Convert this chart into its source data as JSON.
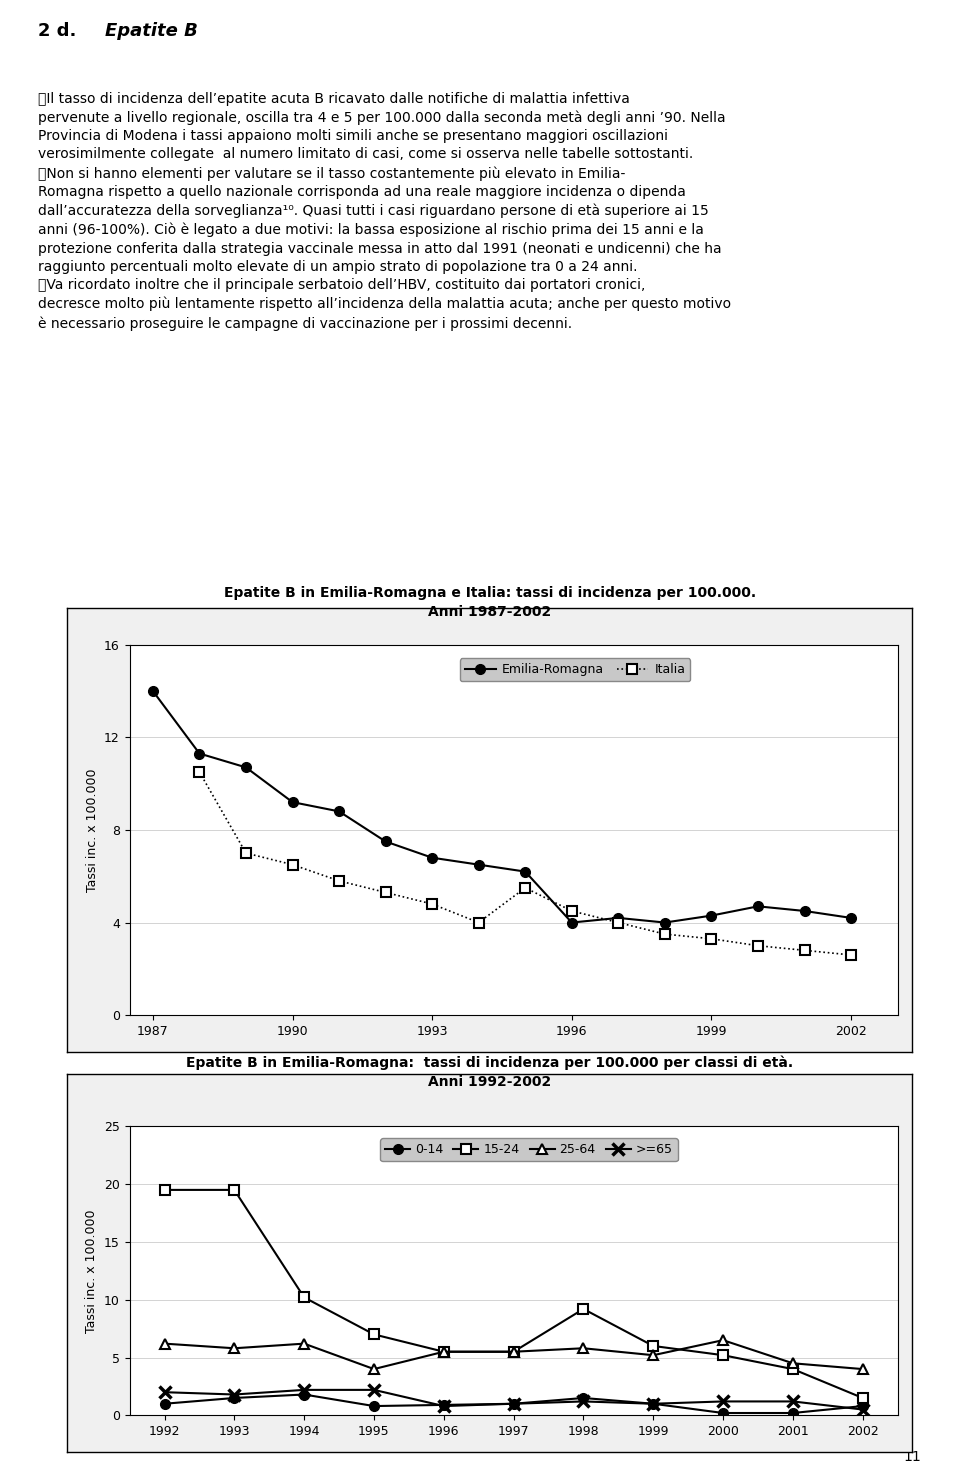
{
  "chart1": {
    "title_line1": "Epatite B in Emilia-Romagna e Italia: tassi di incidenza per 100.000.",
    "title_line2": "Anni 1987-2002",
    "years_er": [
      1987,
      1988,
      1989,
      1990,
      1991,
      1992,
      1993,
      1994,
      1995,
      1996,
      1997,
      1998,
      1999,
      2000,
      2001,
      2002
    ],
    "emilia_romagna": [
      14.0,
      11.3,
      10.7,
      9.2,
      8.8,
      7.5,
      6.8,
      6.5,
      6.2,
      4.0,
      4.2,
      4.0,
      4.3,
      4.7,
      4.5,
      4.2
    ],
    "years_it": [
      1988,
      1989,
      1990,
      1991,
      1992,
      1993,
      1994,
      1995,
      1996,
      1997,
      1998,
      1999,
      2000,
      2001,
      2002
    ],
    "italia": [
      10.5,
      7.0,
      6.5,
      5.8,
      5.3,
      4.8,
      4.0,
      5.5,
      4.5,
      4.0,
      3.5,
      3.3,
      3.0,
      2.8,
      2.6
    ],
    "ylabel": "Tassi inc. x 100.000",
    "ylim": [
      0,
      16
    ],
    "yticks": [
      0,
      4,
      8,
      12,
      16
    ],
    "xticks": [
      1987,
      1990,
      1993,
      1996,
      1999,
      2002
    ]
  },
  "chart2": {
    "title_line1": "Epatite B in Emilia-Romagna:  tassi di incidenza per 100.000 per classi di età.",
    "title_line2": "Anni 1992-2002",
    "years": [
      1992,
      1993,
      1994,
      1995,
      1996,
      1997,
      1998,
      1999,
      2000,
      2001,
      2002
    ],
    "age_0_14": [
      1.0,
      1.5,
      1.8,
      0.8,
      0.9,
      1.0,
      1.5,
      1.0,
      0.2,
      0.2,
      0.8
    ],
    "age_15_24": [
      19.5,
      19.5,
      10.2,
      7.0,
      5.5,
      5.5,
      9.2,
      6.0,
      5.2,
      4.0,
      1.5
    ],
    "age_25_64": [
      6.2,
      5.8,
      6.2,
      4.0,
      5.5,
      5.5,
      5.8,
      5.2,
      6.5,
      4.5,
      4.0
    ],
    "age_ge65": [
      2.0,
      1.8,
      2.2,
      2.2,
      0.8,
      1.0,
      1.2,
      1.0,
      1.2,
      1.2,
      0.5
    ],
    "ylabel": "Tassi inc. x 100.000",
    "ylim": [
      0,
      25
    ],
    "yticks": [
      0,
      5,
      10,
      15,
      20,
      25
    ],
    "xticks": [
      1992,
      1993,
      1994,
      1995,
      1996,
      1997,
      1998,
      1999,
      2000,
      2001,
      2002
    ]
  }
}
